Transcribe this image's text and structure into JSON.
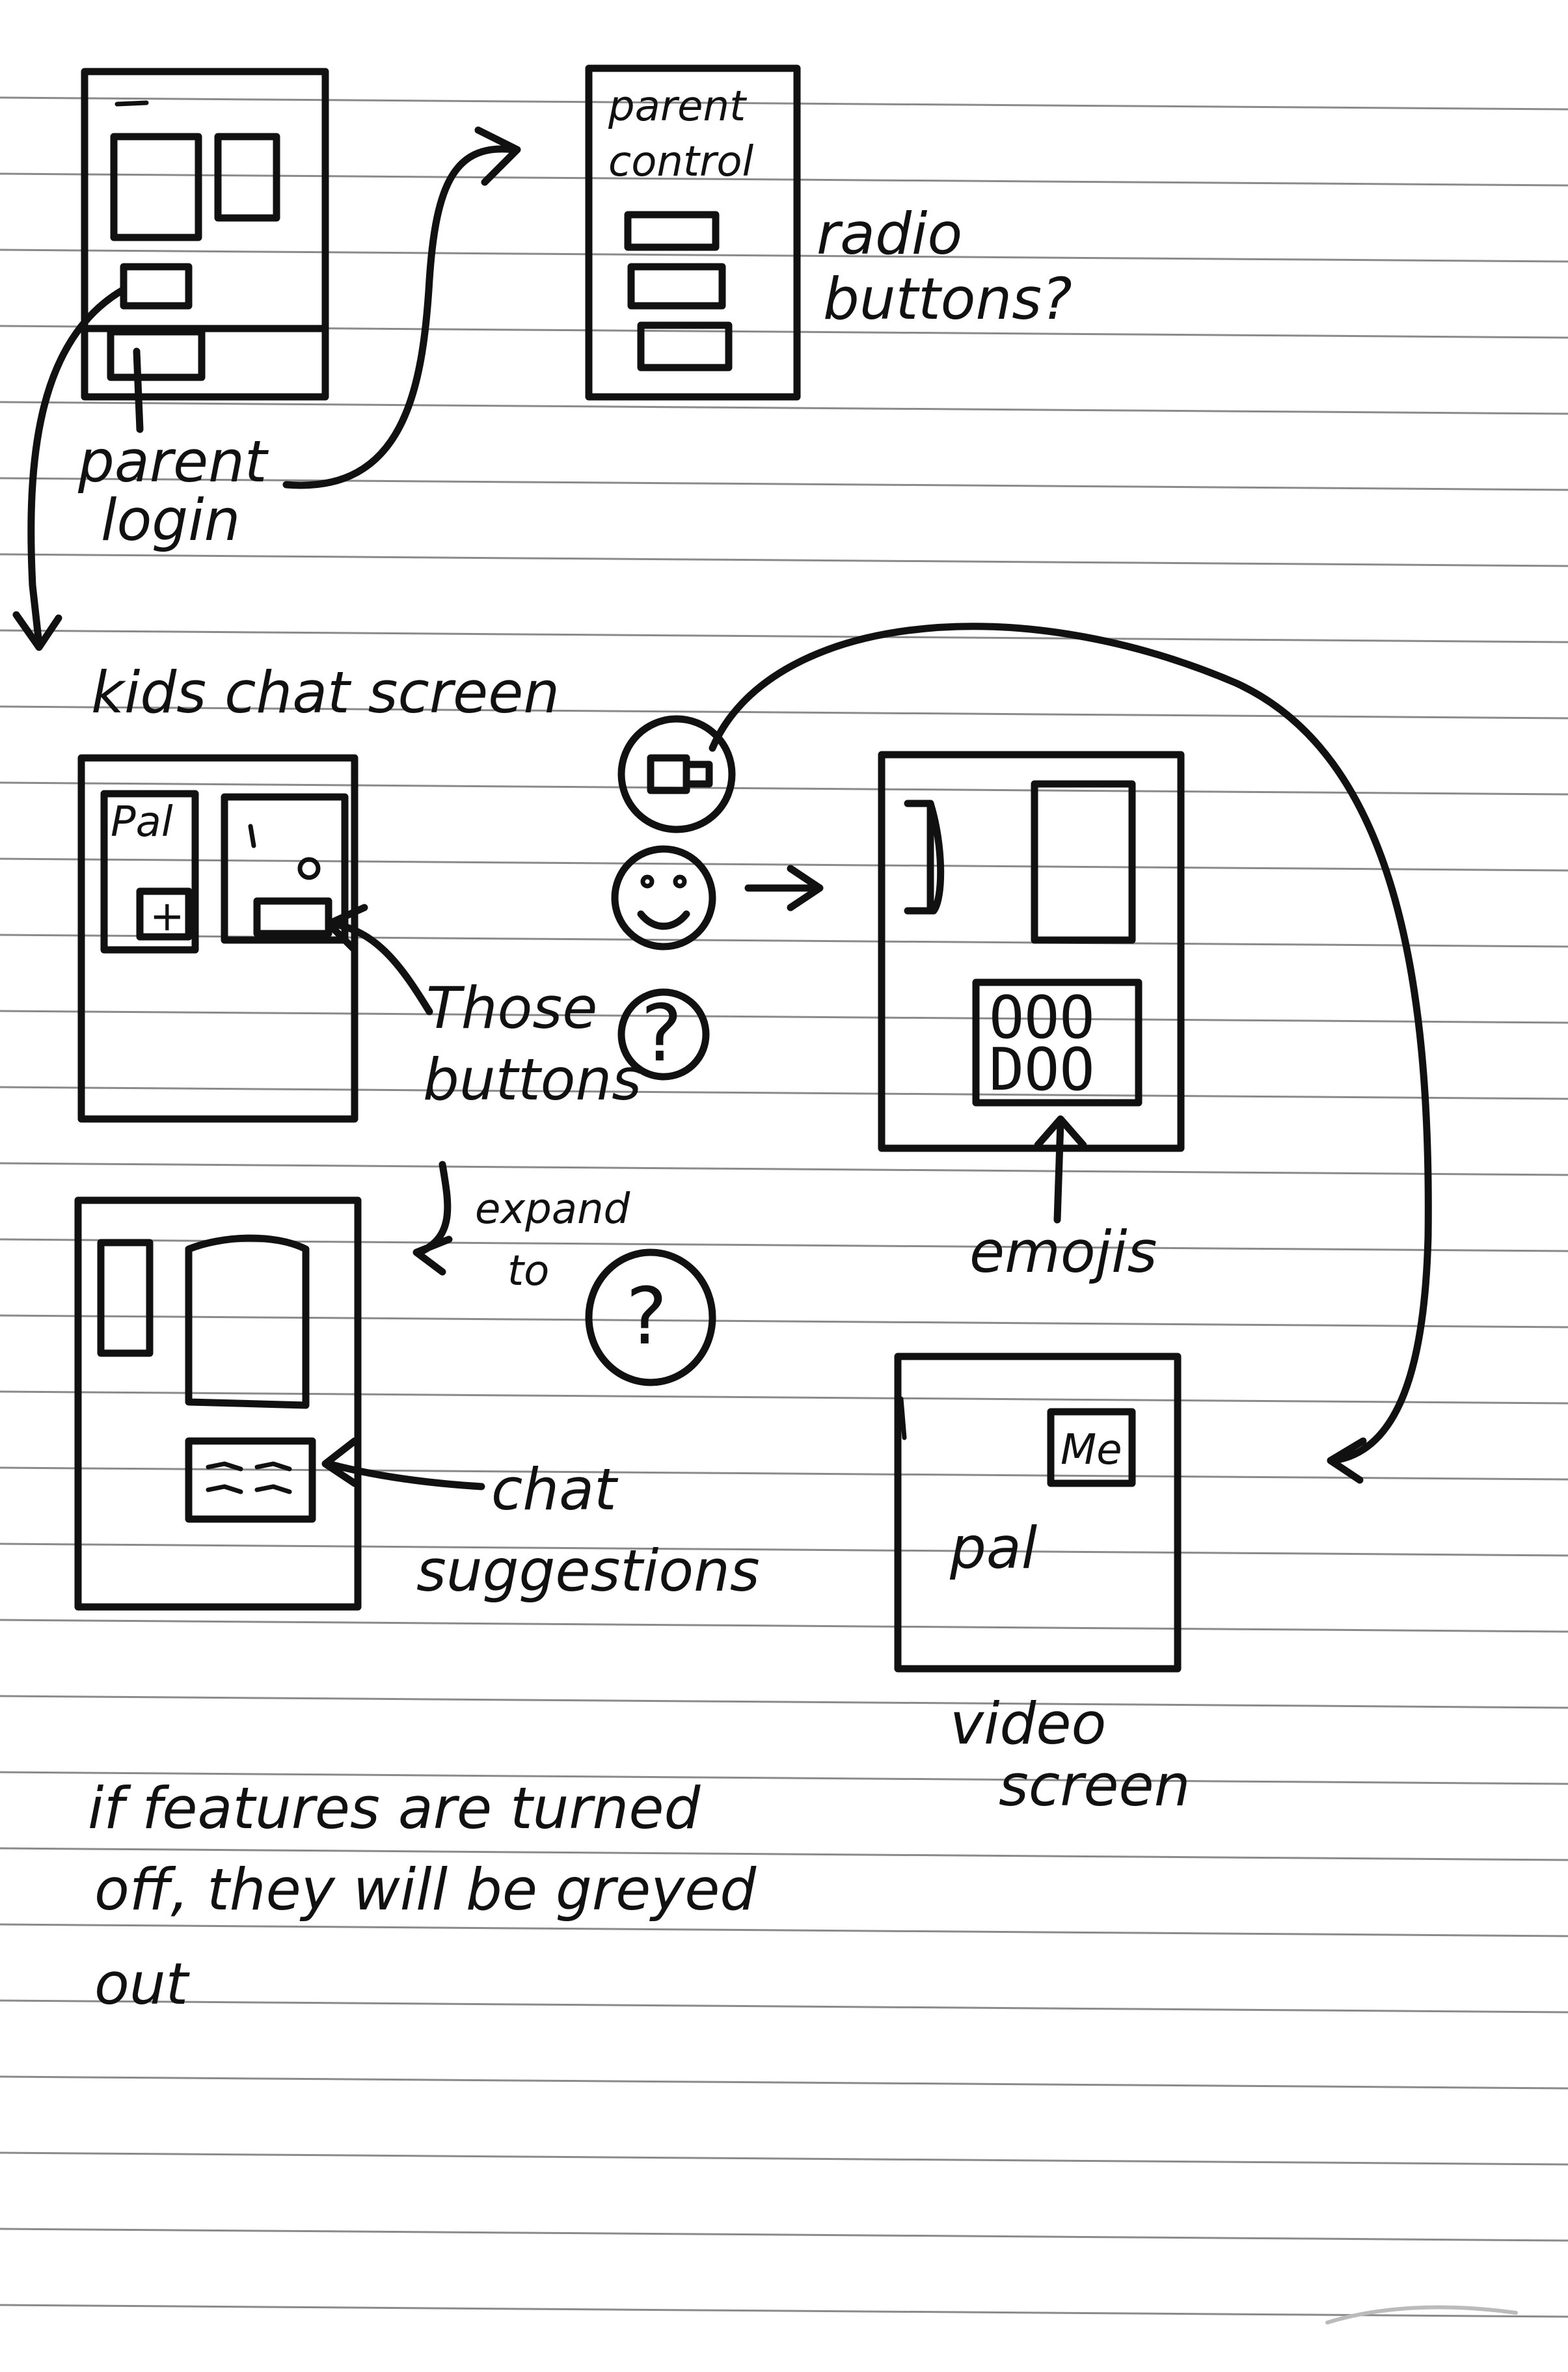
{
  "labels": {
    "parent_control_line1": "parent",
    "parent_control_line2": "control",
    "radio_line1": "radio",
    "radio_line2": "buttons?",
    "parent_login_line1": "parent",
    "parent_login_line2": "login",
    "kids_chat_screen": "kids chat screen",
    "those_buttons_line1": "Those",
    "those_buttons_line2": "buttons",
    "expand_line1": "expand",
    "expand_line2": "to",
    "chat_suggestions_line1": "chat",
    "chat_suggestions_line2": "suggestions",
    "emojis": "emojis",
    "video_screen_line1": "video",
    "video_screen_line2": "screen",
    "me": "Me",
    "pal_video": "pal",
    "pal_chat": "Pal",
    "note_line1": "if features are turned",
    "note_line2": "off, they will be greyed",
    "note_line3": "out"
  },
  "icons": {
    "help": "?",
    "plus": "+",
    "emoji_row1": "OOO",
    "emoji_row2": "DOO"
  }
}
